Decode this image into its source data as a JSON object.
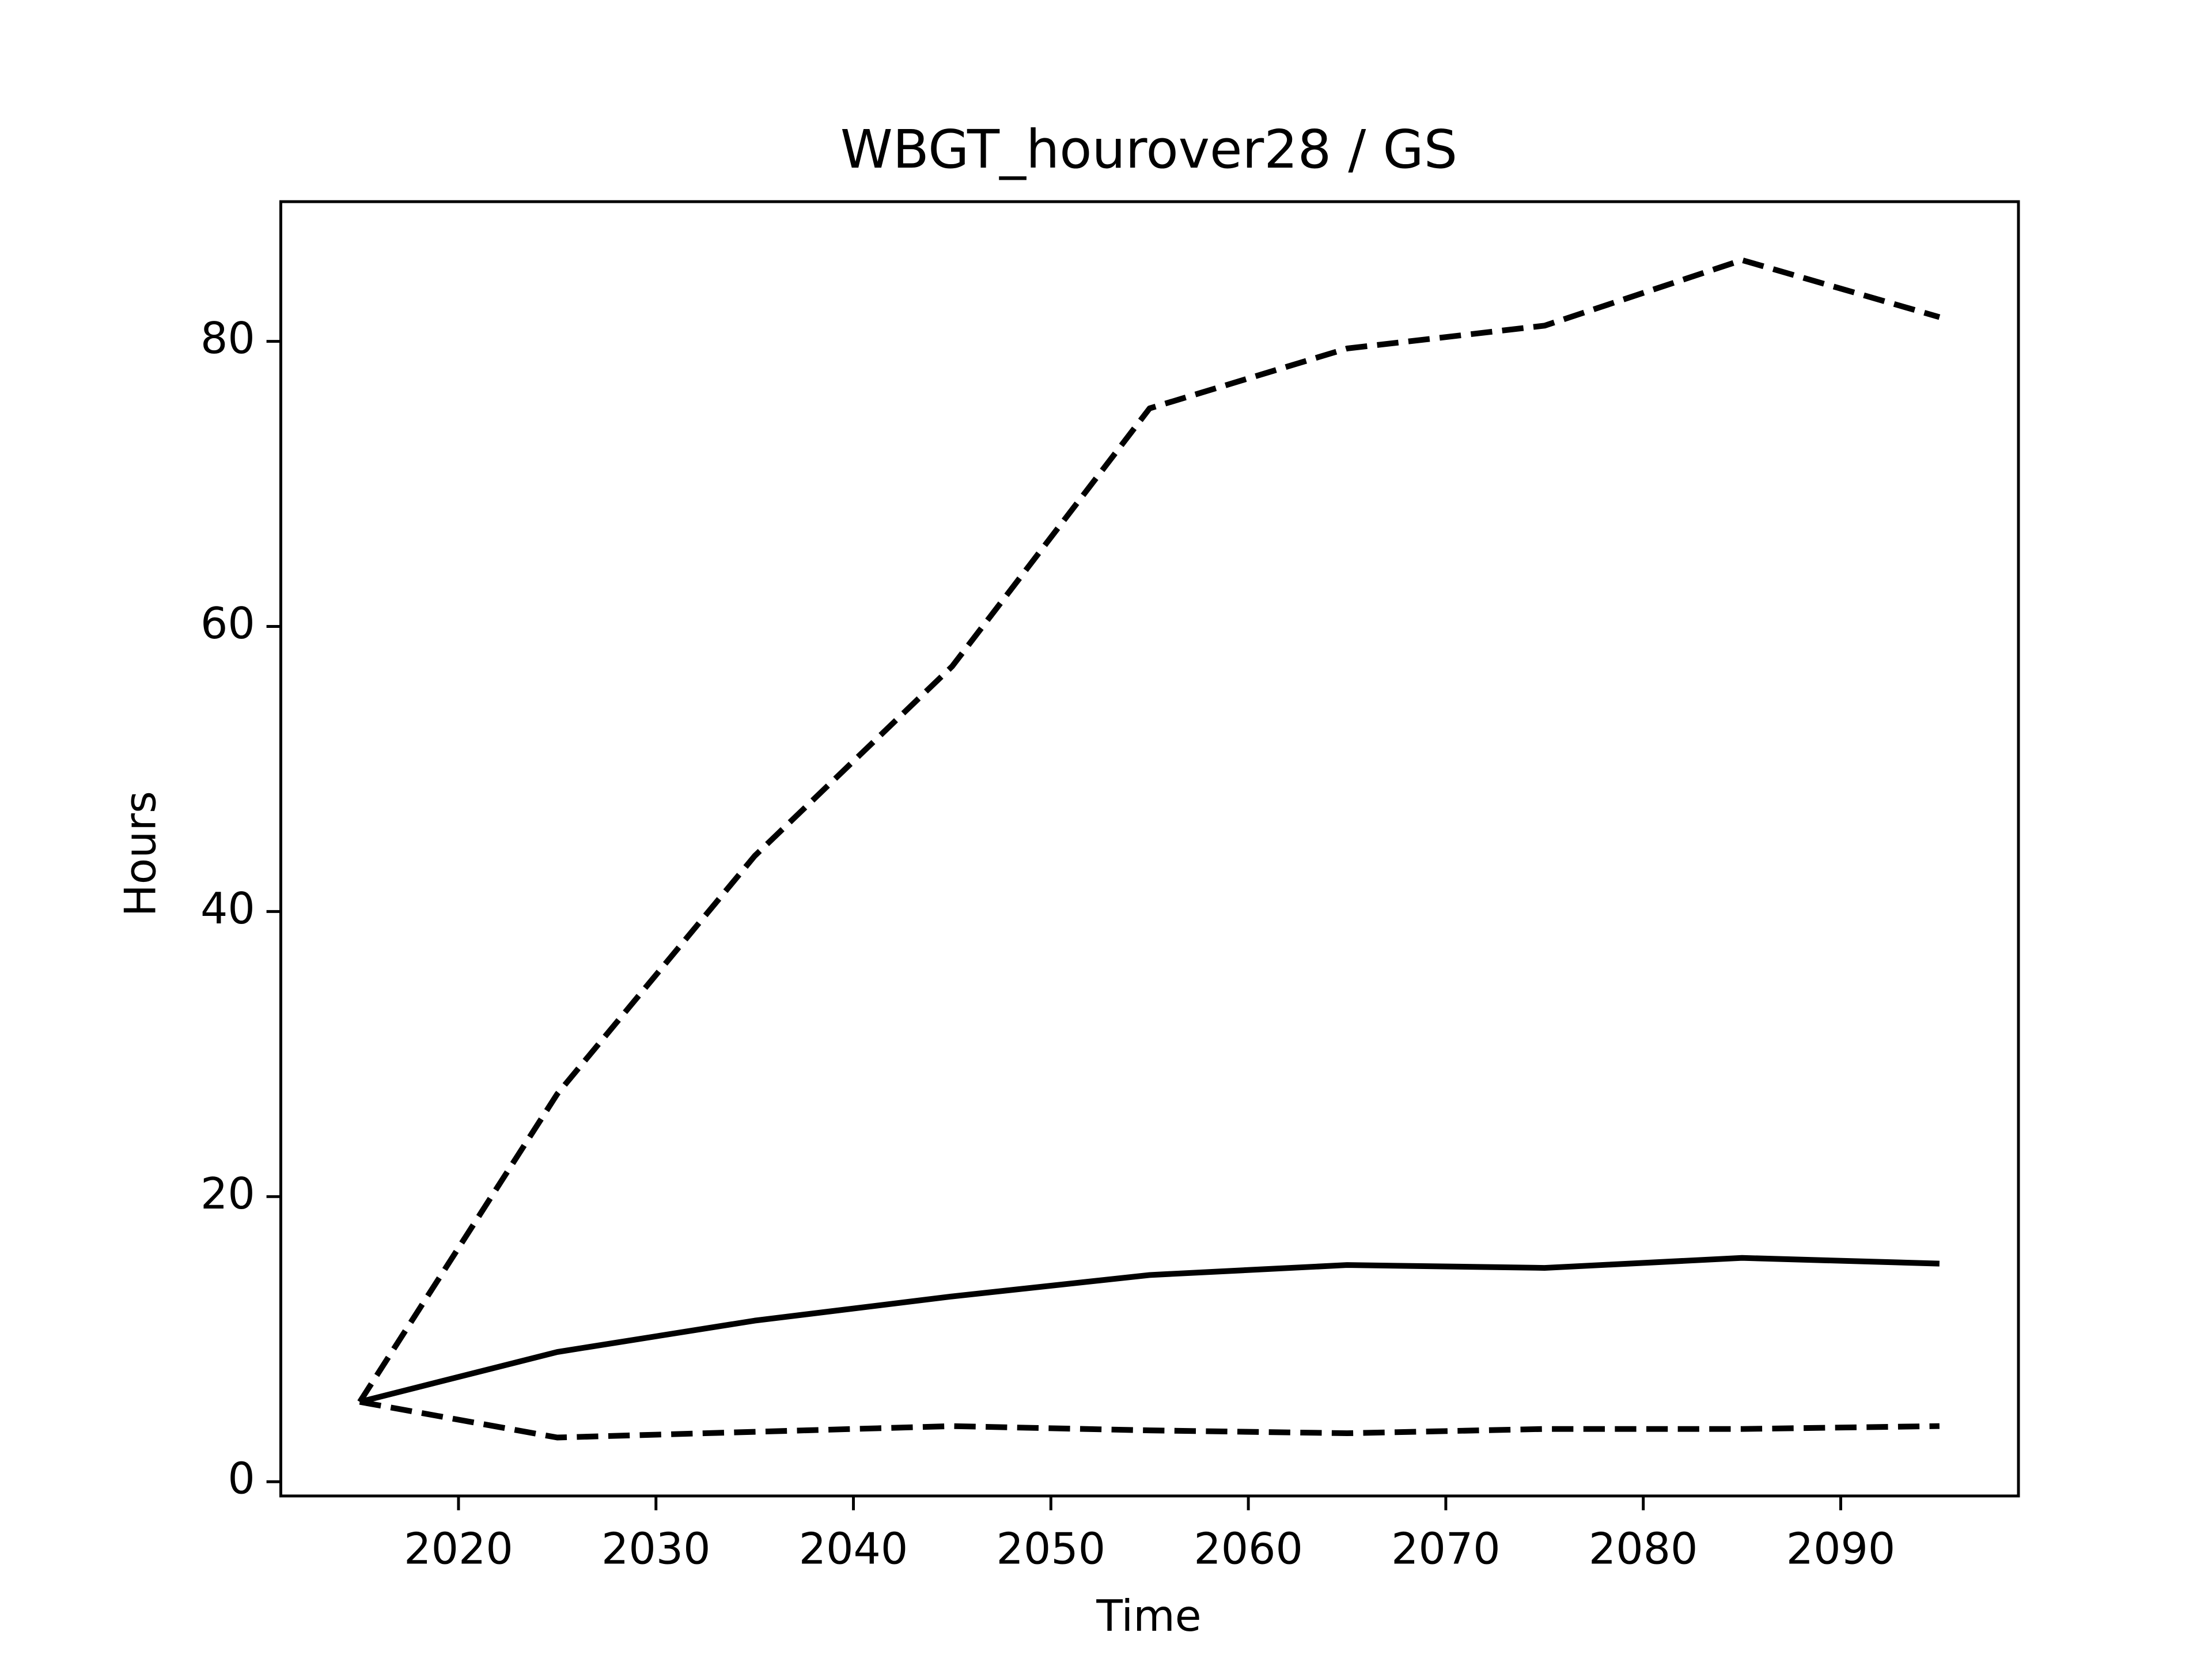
{
  "chart_data": {
    "type": "line",
    "title": "WBGT_hourover28 / GS",
    "x_label": "Time",
    "y_label": "Hours",
    "x": [
      2015,
      2025,
      2035,
      2045,
      2055,
      2065,
      2075,
      2085,
      2095
    ],
    "series": [
      {
        "color": "#000000",
        "style": "dashed",
        "values": [
          5.6,
          27.2,
          43.9,
          57.2,
          75.3,
          79.5,
          81.1,
          85.7,
          81.7
        ]
      },
      {
        "color": "#000000",
        "style": "solid",
        "values": [
          5.6,
          9.1,
          11.3,
          13.0,
          14.5,
          15.2,
          15.0,
          15.7,
          15.3
        ]
      },
      {
        "color": "#000000",
        "style": "dashed",
        "values": [
          5.6,
          3.1,
          3.5,
          3.9,
          3.6,
          3.4,
          3.7,
          3.7,
          3.9
        ]
      }
    ],
    "xlim": [
      2011,
      2099
    ],
    "ylim": [
      -1.0,
      89.8
    ],
    "xticks": [
      2020,
      2030,
      2040,
      2050,
      2060,
      2070,
      2080,
      2090
    ],
    "yticks": [
      0,
      20,
      40,
      60,
      80
    ],
    "grid": false
  }
}
